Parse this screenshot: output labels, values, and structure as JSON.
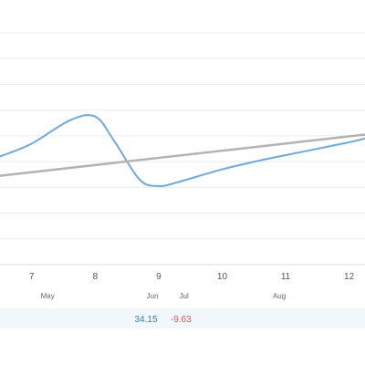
{
  "chart_data": {
    "type": "line",
    "x_ticks": [
      "7",
      "8",
      "9",
      "10",
      "11",
      "12"
    ],
    "xlim": [
      6.5,
      12.25
    ],
    "ylim": [
      0,
      9
    ],
    "grid": true,
    "series": [
      {
        "color": "#6fa8dc",
        "points": [
          [
            6.5,
            4.2
          ],
          [
            7,
            4.7
          ],
          [
            7.6,
            5.6
          ],
          [
            8,
            5.75
          ],
          [
            8.3,
            4.8
          ],
          [
            8.7,
            3.3
          ],
          [
            9,
            3.05
          ],
          [
            9.3,
            3.2
          ],
          [
            10,
            3.7
          ],
          [
            10.7,
            4.1
          ],
          [
            11.3,
            4.4
          ],
          [
            12,
            4.75
          ],
          [
            12.25,
            4.9
          ]
        ]
      },
      {
        "color": "#b3b3b3",
        "points": [
          [
            6.5,
            3.45
          ],
          [
            12.25,
            5.05
          ]
        ]
      }
    ],
    "secondary_row": {
      "months": [
        {
          "label": "May",
          "at": 7.25
        },
        {
          "label": "Jun",
          "at": 8.9
        },
        {
          "label": "Jul",
          "at": 9.4
        },
        {
          "label": "Aug",
          "at": 10.9
        }
      ],
      "values": [
        {
          "label": "34.15",
          "at": 8.8,
          "color": "#3b78b5"
        },
        {
          "label": "-9.63",
          "at": 9.35,
          "color": "#d9534f"
        }
      ]
    },
    "colors": {
      "grid": "#ececec",
      "axis": "#dddddd",
      "band": "#f2f7fc"
    }
  }
}
